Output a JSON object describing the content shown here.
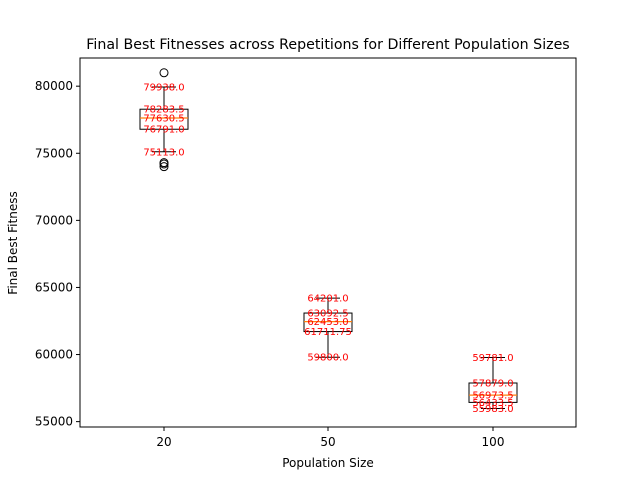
{
  "chart_data": {
    "type": "box",
    "title": "Final Best Fitnesses across Repetitions for Different Population Sizes",
    "xlabel": "Population Size",
    "ylabel": "Final Best Fitness",
    "ylim": [
      54600,
      82100
    ],
    "yticks": [
      55000,
      60000,
      65000,
      70000,
      75000,
      80000
    ],
    "ytick_labels": [
      "55000",
      "60000",
      "65000",
      "70000",
      "75000",
      "80000"
    ],
    "categories": [
      "20",
      "50",
      "100"
    ],
    "boxes": [
      {
        "category": "20",
        "whisker_low": 75113.0,
        "q1": 76791.0,
        "median": 77630.5,
        "q3": 78283.5,
        "whisker_high": 79938.0,
        "outliers": [
          74000,
          74200,
          74300,
          81000
        ],
        "labels": {
          "whisker_high": "79938.0",
          "q3": "78283.5",
          "median": "77630.5",
          "q1": "76791.0",
          "whisker_low": "75113.0"
        }
      },
      {
        "category": "50",
        "whisker_low": 59800.0,
        "q1": 61711.75,
        "median": 62453.0,
        "q3": 63092.5,
        "whisker_high": 64201.0,
        "outliers": [],
        "labels": {
          "whisker_high": "64201.0",
          "q3": "63092.5",
          "median": "62453.0",
          "q1": "61711.75",
          "whisker_low": "59800.0"
        }
      },
      {
        "category": "100",
        "whisker_low": 55983.0,
        "q1": 56433.5,
        "median": 56973.5,
        "q3": 57879.0,
        "whisker_high": 59781.0,
        "outliers": [],
        "labels": {
          "whisker_high": "59781.0",
          "q3": "57879.0",
          "median": "56973.5",
          "q1": "56433.5",
          "whisker_low": "55983.0"
        }
      }
    ],
    "colors": {
      "annotation": "#ff0000",
      "box": "#000000",
      "median": "#ff7f0e"
    },
    "grid": false,
    "legend": "none"
  }
}
